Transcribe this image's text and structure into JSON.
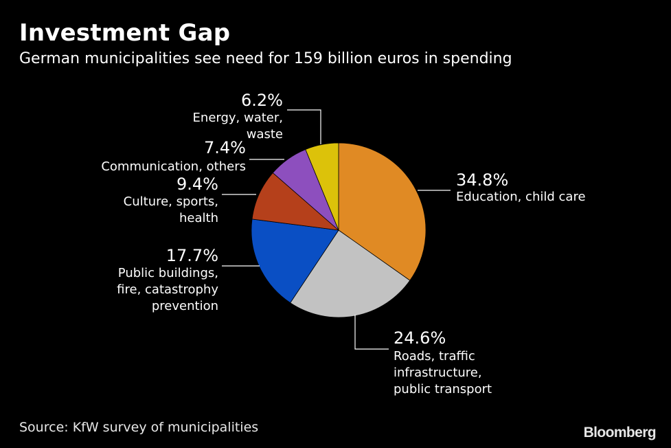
{
  "header": {
    "title": "Investment Gap",
    "subtitle": "German municipalities see need for 159 billion euros in spending"
  },
  "footer": {
    "source": "Source: KfW survey of municipalities",
    "logo": "Bloomberg"
  },
  "chart_data": {
    "type": "pie",
    "slices": [
      {
        "pct_label": "34.8%",
        "value": 34.8,
        "label_lines": [
          "Education, child care"
        ],
        "color": "#E08A24"
      },
      {
        "pct_label": "24.6%",
        "value": 24.6,
        "label_lines": [
          "Roads, traffic",
          "infrastructure,",
          "public transport"
        ],
        "color": "#C2C2C2"
      },
      {
        "pct_label": "17.7%",
        "value": 17.7,
        "label_lines": [
          "Public buildings,",
          "fire, catastrophy",
          "prevention"
        ],
        "color": "#0A4FC4"
      },
      {
        "pct_label": "9.4%",
        "value": 9.4,
        "label_lines": [
          "Culture, sports,",
          "health"
        ],
        "color": "#B5401B"
      },
      {
        "pct_label": "7.4%",
        "value": 7.4,
        "label_lines": [
          "Communication, others"
        ],
        "color": "#8D4FBE"
      },
      {
        "pct_label": "6.2%",
        "value": 6.2,
        "label_lines": [
          "Energy, water,",
          "waste"
        ],
        "color": "#DCC20A"
      }
    ]
  }
}
